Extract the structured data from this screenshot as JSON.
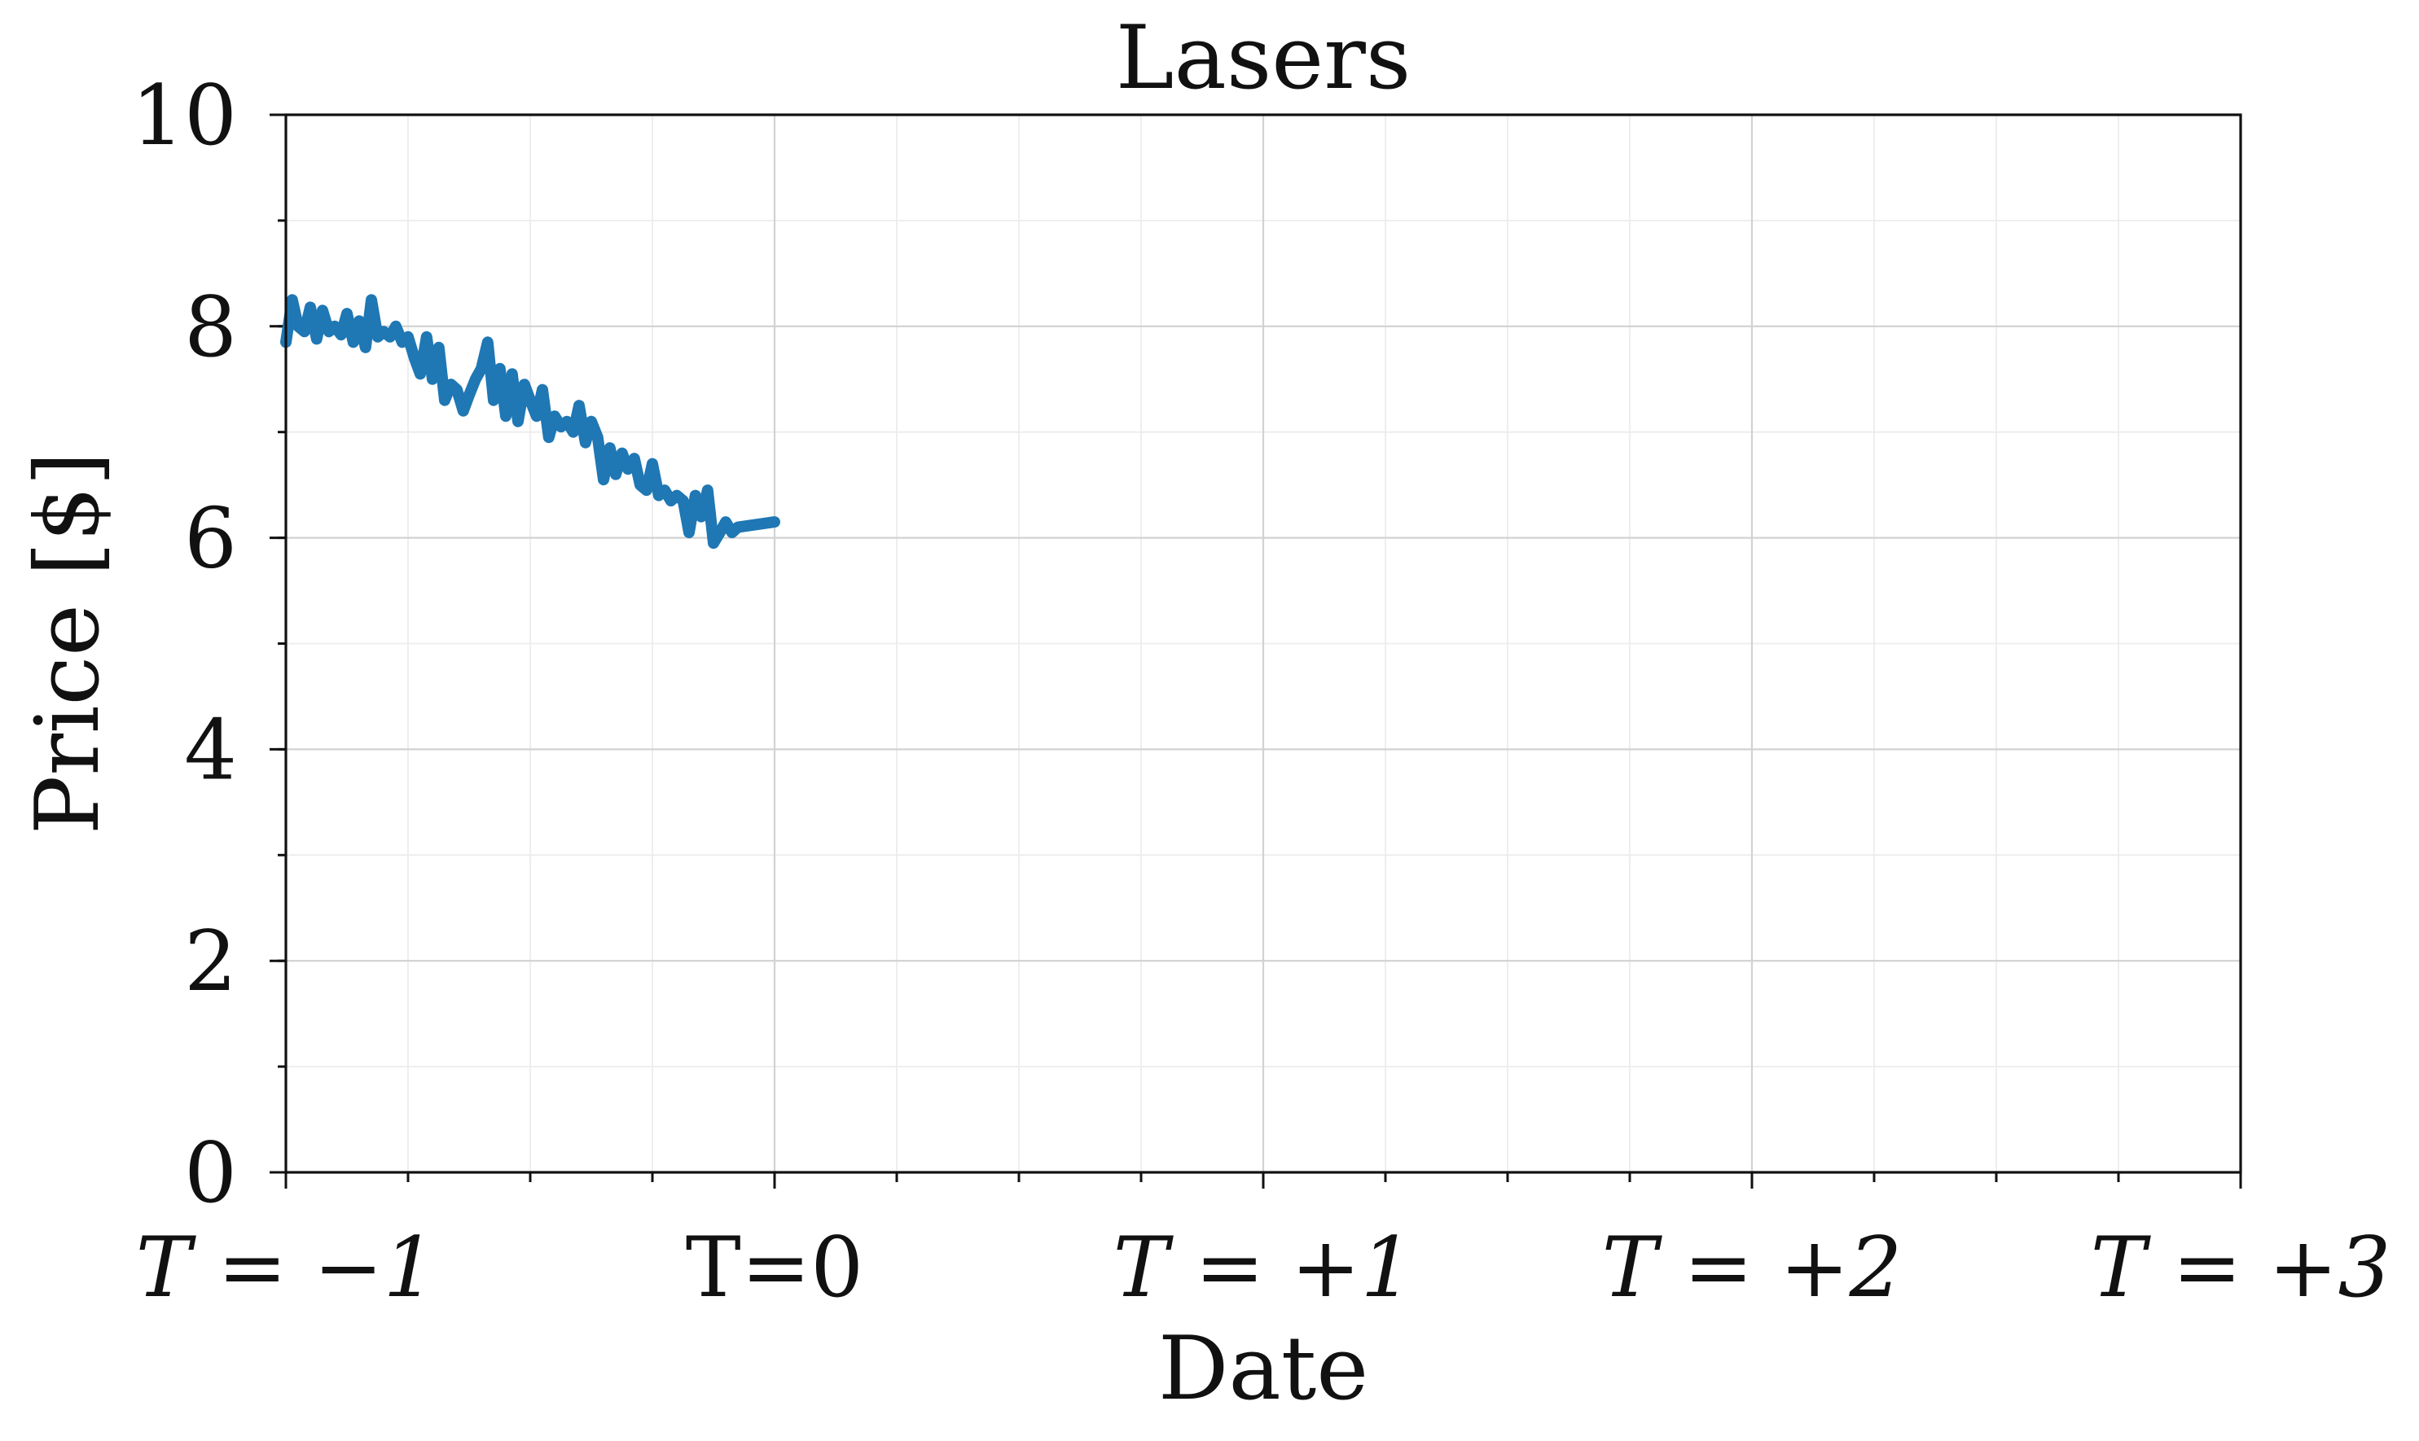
{
  "chart_data": {
    "type": "line",
    "title": "Lasers",
    "xlabel": "Date",
    "ylabel": "Price [$]",
    "xlim": [
      -1,
      3
    ],
    "ylim": [
      0,
      10
    ],
    "x_ticks": [
      {
        "value": -1,
        "label": "T = −1",
        "italic": true
      },
      {
        "value": 0,
        "label": "T=0",
        "italic": false
      },
      {
        "value": 1,
        "label": "T = +1",
        "italic": true
      },
      {
        "value": 2,
        "label": "T = +2",
        "italic": true
      },
      {
        "value": 3,
        "label": "T = +3",
        "italic": true
      }
    ],
    "y_ticks": [
      0,
      2,
      4,
      6,
      8,
      10
    ],
    "grid": true,
    "legend": "none",
    "series": [
      {
        "color": "#1f77b4",
        "points": [
          [
            -1.0,
            7.85
          ],
          [
            -0.987,
            8.25
          ],
          [
            -0.975,
            8.0
          ],
          [
            -0.962,
            7.95
          ],
          [
            -0.95,
            8.18
          ],
          [
            -0.937,
            7.88
          ],
          [
            -0.925,
            8.15
          ],
          [
            -0.912,
            7.95
          ],
          [
            -0.9,
            8.0
          ],
          [
            -0.887,
            7.92
          ],
          [
            -0.875,
            8.12
          ],
          [
            -0.862,
            7.85
          ],
          [
            -0.85,
            8.05
          ],
          [
            -0.837,
            7.8
          ],
          [
            -0.825,
            8.25
          ],
          [
            -0.812,
            7.9
          ],
          [
            -0.8,
            7.95
          ],
          [
            -0.787,
            7.9
          ],
          [
            -0.775,
            8.0
          ],
          [
            -0.762,
            7.85
          ],
          [
            -0.75,
            7.9
          ],
          [
            -0.737,
            7.7
          ],
          [
            -0.725,
            7.55
          ],
          [
            -0.712,
            7.9
          ],
          [
            -0.7,
            7.5
          ],
          [
            -0.687,
            7.8
          ],
          [
            -0.675,
            7.3
          ],
          [
            -0.662,
            7.45
          ],
          [
            -0.65,
            7.4
          ],
          [
            -0.637,
            7.2
          ],
          [
            -0.625,
            7.35
          ],
          [
            -0.612,
            7.5
          ],
          [
            -0.6,
            7.6
          ],
          [
            -0.587,
            7.85
          ],
          [
            -0.575,
            7.3
          ],
          [
            -0.562,
            7.6
          ],
          [
            -0.55,
            7.15
          ],
          [
            -0.537,
            7.55
          ],
          [
            -0.525,
            7.1
          ],
          [
            -0.512,
            7.45
          ],
          [
            -0.5,
            7.3
          ],
          [
            -0.487,
            7.15
          ],
          [
            -0.475,
            7.4
          ],
          [
            -0.462,
            6.95
          ],
          [
            -0.45,
            7.15
          ],
          [
            -0.437,
            7.05
          ],
          [
            -0.425,
            7.1
          ],
          [
            -0.412,
            7.0
          ],
          [
            -0.4,
            7.25
          ],
          [
            -0.387,
            6.9
          ],
          [
            -0.375,
            7.1
          ],
          [
            -0.362,
            6.95
          ],
          [
            -0.35,
            6.55
          ],
          [
            -0.337,
            6.85
          ],
          [
            -0.325,
            6.6
          ],
          [
            -0.312,
            6.8
          ],
          [
            -0.3,
            6.65
          ],
          [
            -0.287,
            6.75
          ],
          [
            -0.275,
            6.5
          ],
          [
            -0.262,
            6.45
          ],
          [
            -0.25,
            6.7
          ],
          [
            -0.237,
            6.4
          ],
          [
            -0.225,
            6.45
          ],
          [
            -0.212,
            6.35
          ],
          [
            -0.2,
            6.4
          ],
          [
            -0.187,
            6.35
          ],
          [
            -0.175,
            6.05
          ],
          [
            -0.162,
            6.4
          ],
          [
            -0.15,
            6.2
          ],
          [
            -0.137,
            6.45
          ],
          [
            -0.125,
            5.95
          ],
          [
            -0.112,
            6.05
          ],
          [
            -0.1,
            6.15
          ],
          [
            -0.087,
            6.05
          ],
          [
            -0.075,
            6.1
          ],
          [
            0.0,
            6.15
          ]
        ]
      }
    ]
  }
}
